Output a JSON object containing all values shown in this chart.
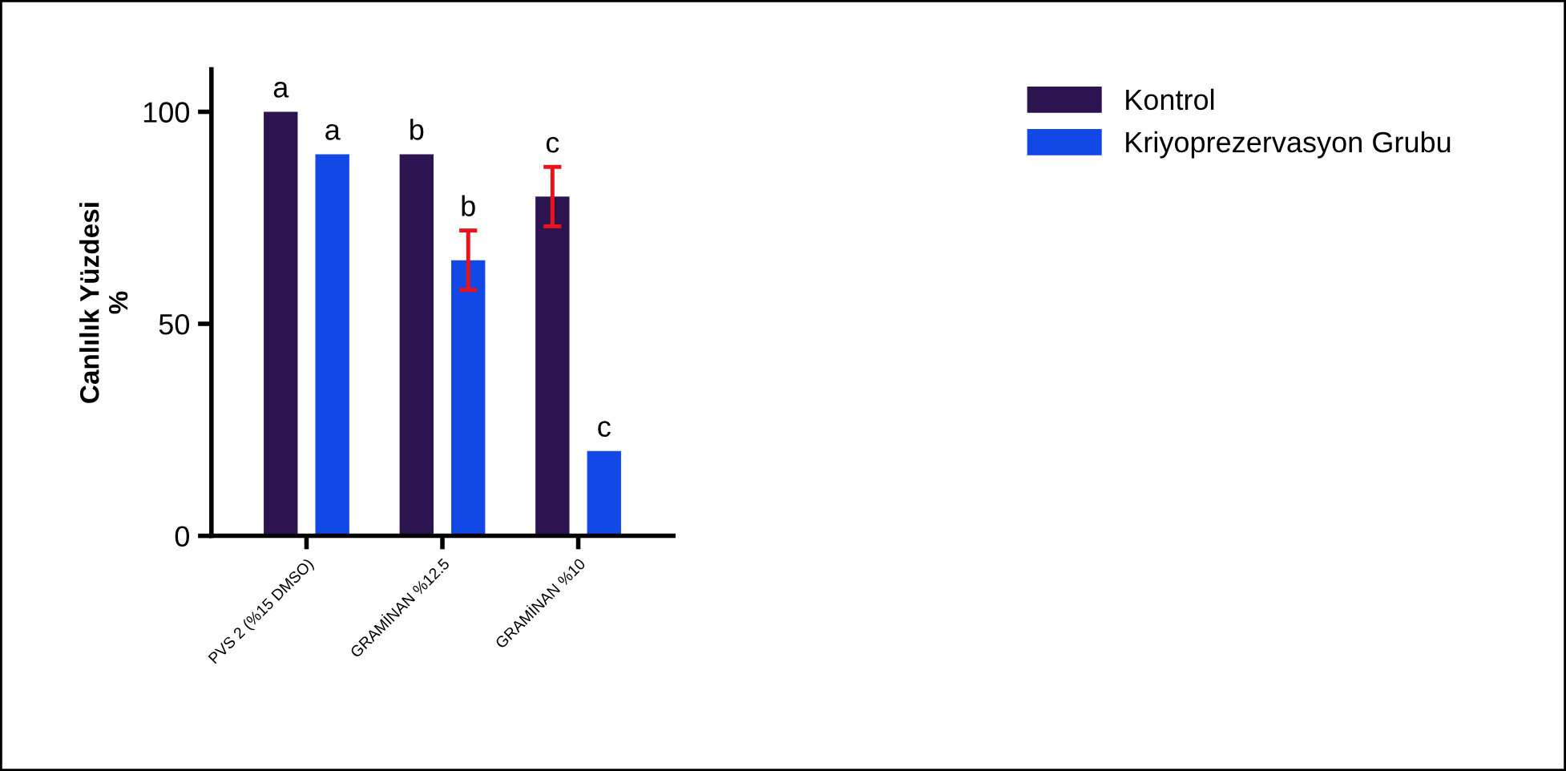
{
  "chart_data": {
    "type": "bar",
    "ylabel": "Canlılık Yüzdesi\n%",
    "categories": [
      "PVS 2 (%15 DMSO)",
      "GRAMİNAN %12.5",
      "GRAMİNAN %10"
    ],
    "ylim": [
      0,
      110
    ],
    "yticks": [
      0,
      50,
      100
    ],
    "grid": false,
    "legend": "top right",
    "series": [
      {
        "name": "Kontrol",
        "color": "#2c1450",
        "values": [
          100,
          90,
          80
        ],
        "errors": [
          null,
          null,
          7
        ],
        "value_labels": [
          "a",
          "b",
          "c"
        ]
      },
      {
        "name": "Kriyoprezervasyon Grubu",
        "color": "#1249e6",
        "values": [
          90,
          65,
          20
        ],
        "errors": [
          null,
          7,
          null
        ],
        "value_labels": [
          "a",
          "b",
          "c"
        ]
      }
    ]
  }
}
